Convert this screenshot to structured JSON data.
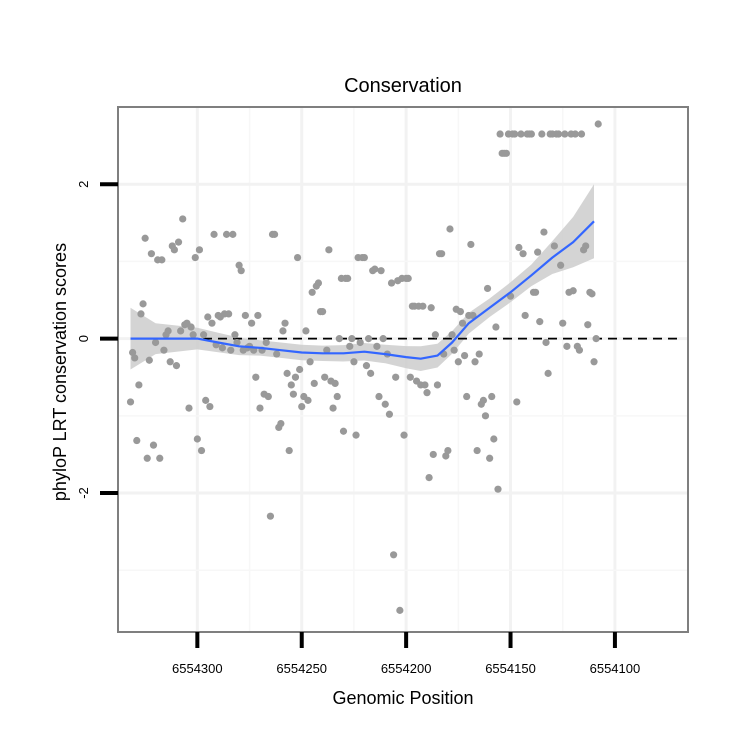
{
  "chart_data": {
    "type": "scatter",
    "title": "Conservation",
    "xlabel": "Genomic Position",
    "ylabel": "phyloP LRT conservation scores",
    "x_reversed": true,
    "xlim": [
      6554338,
      6554065
    ],
    "ylim": [
      -3.8,
      3.0
    ],
    "x_ticks": [
      6554300,
      6554250,
      6554200,
      6554150,
      6554100
    ],
    "x_tick_labels": [
      "6554300",
      "6554250",
      "6554200",
      "6554150",
      "6554100"
    ],
    "y_ticks": [
      -2,
      0,
      2
    ],
    "y_tick_labels": [
      "-2",
      "0",
      "2"
    ],
    "y_minor_gridlines": [
      -3,
      -1,
      1
    ],
    "x_minor_gridlines": [
      6554275,
      6554225,
      6554175,
      6554125
    ],
    "reference_line": {
      "y": 0,
      "style": "dashed"
    },
    "colors": {
      "points": "#999999",
      "smooth": "#3366ff",
      "ribbon": "#cccccc",
      "frame": "#7f7f7f",
      "grid": "#f2f2f2"
    },
    "points": [
      [
        6554332,
        -0.82
      ],
      [
        6554331,
        -0.18
      ],
      [
        6554330,
        -0.25
      ],
      [
        6554329,
        -1.32
      ],
      [
        6554328,
        -0.6
      ],
      [
        6554327,
        0.32
      ],
      [
        6554326,
        0.45
      ],
      [
        6554325,
        1.3
      ],
      [
        6554324,
        -1.55
      ],
      [
        6554323,
        -0.28
      ],
      [
        6554322,
        1.1
      ],
      [
        6554321,
        -1.38
      ],
      [
        6554320,
        -0.05
      ],
      [
        6554319,
        1.02
      ],
      [
        6554318,
        -1.55
      ],
      [
        6554317,
        1.02
      ],
      [
        6554316,
        -0.15
      ],
      [
        6554315,
        0.05
      ],
      [
        6554314,
        0.1
      ],
      [
        6554313,
        -0.3
      ],
      [
        6554312,
        1.2
      ],
      [
        6554311,
        1.15
      ],
      [
        6554310,
        -0.35
      ],
      [
        6554309,
        1.25
      ],
      [
        6554308,
        0.1
      ],
      [
        6554307,
        1.55
      ],
      [
        6554306,
        0.18
      ],
      [
        6554305,
        0.2
      ],
      [
        6554304,
        -0.9
      ],
      [
        6554303,
        0.15
      ],
      [
        6554302,
        0.05
      ],
      [
        6554301,
        1.05
      ],
      [
        6554300,
        -1.3
      ],
      [
        6554299,
        1.15
      ],
      [
        6554298,
        -1.45
      ],
      [
        6554297,
        0.05
      ],
      [
        6554296,
        -0.8
      ],
      [
        6554295,
        0.28
      ],
      [
        6554294,
        -0.88
      ],
      [
        6554293,
        0.2
      ],
      [
        6554292,
        1.35
      ],
      [
        6554291,
        -0.08
      ],
      [
        6554290,
        0.3
      ],
      [
        6554289,
        0.28
      ],
      [
        6554288,
        -0.12
      ],
      [
        6554287,
        0.32
      ],
      [
        6554286,
        1.35
      ],
      [
        6554285,
        0.32
      ],
      [
        6554284,
        -0.15
      ],
      [
        6554283,
        1.35
      ],
      [
        6554282,
        0.05
      ],
      [
        6554281,
        -0.05
      ],
      [
        6554280,
        0.95
      ],
      [
        6554279,
        0.88
      ],
      [
        6554278,
        -0.15
      ],
      [
        6554277,
        0.3
      ],
      [
        6554276,
        -0.12
      ],
      [
        6554275,
        -0.1
      ],
      [
        6554274,
        0.2
      ],
      [
        6554273,
        -0.15
      ],
      [
        6554272,
        -0.5
      ],
      [
        6554271,
        0.3
      ],
      [
        6554270,
        -0.9
      ],
      [
        6554269,
        -0.15
      ],
      [
        6554268,
        -0.72
      ],
      [
        6554267,
        -0.05
      ],
      [
        6554266,
        -0.75
      ],
      [
        6554265,
        -2.3
      ],
      [
        6554264,
        1.35
      ],
      [
        6554263,
        1.35
      ],
      [
        6554262,
        -0.2
      ],
      [
        6554261,
        -1.15
      ],
      [
        6554260,
        -1.1
      ],
      [
        6554259,
        0.1
      ],
      [
        6554258,
        0.2
      ],
      [
        6554257,
        -0.45
      ],
      [
        6554256,
        -1.45
      ],
      [
        6554255,
        -0.6
      ],
      [
        6554254,
        -0.72
      ],
      [
        6554253,
        -0.5
      ],
      [
        6554252,
        1.05
      ],
      [
        6554251,
        -0.4
      ],
      [
        6554250,
        -0.88
      ],
      [
        6554249,
        -0.75
      ],
      [
        6554248,
        0.1
      ],
      [
        6554247,
        -0.8
      ],
      [
        6554246,
        -0.3
      ],
      [
        6554245,
        0.6
      ],
      [
        6554244,
        -0.58
      ],
      [
        6554243,
        0.68
      ],
      [
        6554242,
        0.72
      ],
      [
        6554241,
        0.35
      ],
      [
        6554240,
        0.35
      ],
      [
        6554239,
        -0.5
      ],
      [
        6554238,
        -0.15
      ],
      [
        6554237,
        1.15
      ],
      [
        6554236,
        -0.55
      ],
      [
        6554235,
        -0.9
      ],
      [
        6554234,
        -0.58
      ],
      [
        6554233,
        -0.75
      ],
      [
        6554232,
        0.0
      ],
      [
        6554231,
        0.78
      ],
      [
        6554230,
        -1.2
      ],
      [
        6554229,
        0.78
      ],
      [
        6554228,
        0.78
      ],
      [
        6554227,
        -0.1
      ],
      [
        6554226,
        0.0
      ],
      [
        6554225,
        -0.3
      ],
      [
        6554224,
        -1.25
      ],
      [
        6554223,
        1.05
      ],
      [
        6554222,
        -0.05
      ],
      [
        6554221,
        1.05
      ],
      [
        6554220,
        1.05
      ],
      [
        6554219,
        -0.35
      ],
      [
        6554218,
        0.0
      ],
      [
        6554217,
        -0.45
      ],
      [
        6554216,
        0.88
      ],
      [
        6554215,
        0.9
      ],
      [
        6554214,
        -0.1
      ],
      [
        6554213,
        -0.75
      ],
      [
        6554212,
        0.88
      ],
      [
        6554211,
        0.0
      ],
      [
        6554210,
        -0.85
      ],
      [
        6554209,
        -0.2
      ],
      [
        6554208,
        -0.98
      ],
      [
        6554207,
        0.72
      ],
      [
        6554206,
        -2.8
      ],
      [
        6554205,
        -0.5
      ],
      [
        6554204,
        0.75
      ],
      [
        6554203,
        -3.52
      ],
      [
        6554202,
        0.78
      ],
      [
        6554201,
        -1.25
      ],
      [
        6554200,
        0.78
      ],
      [
        6554199,
        0.78
      ],
      [
        6554198,
        -0.5
      ],
      [
        6554197,
        0.42
      ],
      [
        6554196,
        0.42
      ],
      [
        6554195,
        -0.55
      ],
      [
        6554194,
        0.42
      ],
      [
        6554193,
        -0.6
      ],
      [
        6554192,
        0.42
      ],
      [
        6554191,
        -0.6
      ],
      [
        6554190,
        -0.7
      ],
      [
        6554189,
        -1.8
      ],
      [
        6554188,
        0.4
      ],
      [
        6554187,
        -1.5
      ],
      [
        6554186,
        0.05
      ],
      [
        6554185,
        -0.6
      ],
      [
        6554184,
        1.1
      ],
      [
        6554183,
        1.1
      ],
      [
        6554182,
        -0.2
      ],
      [
        6554181,
        -1.52
      ],
      [
        6554180,
        -1.45
      ],
      [
        6554179,
        1.42
      ],
      [
        6554178,
        0.05
      ],
      [
        6554177,
        -0.15
      ],
      [
        6554176,
        0.38
      ],
      [
        6554175,
        -0.3
      ],
      [
        6554174,
        0.35
      ],
      [
        6554173,
        0.2
      ],
      [
        6554172,
        -0.22
      ],
      [
        6554171,
        -0.75
      ],
      [
        6554170,
        0.3
      ],
      [
        6554169,
        1.22
      ],
      [
        6554168,
        0.3
      ],
      [
        6554167,
        -0.3
      ],
      [
        6554166,
        -1.45
      ],
      [
        6554165,
        -0.2
      ],
      [
        6554164,
        -0.85
      ],
      [
        6554163,
        -0.8
      ],
      [
        6554162,
        -1.0
      ],
      [
        6554161,
        0.65
      ],
      [
        6554160,
        -1.55
      ],
      [
        6554159,
        -0.75
      ],
      [
        6554158,
        -1.3
      ],
      [
        6554157,
        0.15
      ],
      [
        6554156,
        -1.95
      ],
      [
        6554155,
        2.65
      ],
      [
        6554154,
        2.4
      ],
      [
        6554153,
        2.4
      ],
      [
        6554152,
        2.4
      ],
      [
        6554151,
        2.65
      ],
      [
        6554150,
        0.55
      ],
      [
        6554149,
        2.65
      ],
      [
        6554148,
        2.65
      ],
      [
        6554147,
        -0.82
      ],
      [
        6554146,
        1.18
      ],
      [
        6554145,
        2.65
      ],
      [
        6554144,
        1.1
      ],
      [
        6554143,
        0.3
      ],
      [
        6554142,
        2.65
      ],
      [
        6554141,
        2.65
      ],
      [
        6554140,
        2.65
      ],
      [
        6554139,
        0.6
      ],
      [
        6554138,
        0.6
      ],
      [
        6554137,
        1.12
      ],
      [
        6554136,
        0.22
      ],
      [
        6554135,
        2.65
      ],
      [
        6554134,
        1.38
      ],
      [
        6554133,
        -0.05
      ],
      [
        6554132,
        -0.45
      ],
      [
        6554131,
        2.65
      ],
      [
        6554130,
        2.65
      ],
      [
        6554129,
        1.2
      ],
      [
        6554128,
        2.65
      ],
      [
        6554127,
        2.65
      ],
      [
        6554126,
        0.95
      ],
      [
        6554125,
        0.2
      ],
      [
        6554124,
        2.65
      ],
      [
        6554123,
        -0.1
      ],
      [
        6554122,
        0.6
      ],
      [
        6554121,
        2.65
      ],
      [
        6554120,
        0.62
      ],
      [
        6554119,
        2.65
      ],
      [
        6554118,
        -0.1
      ],
      [
        6554117,
        -0.15
      ],
      [
        6554116,
        2.65
      ],
      [
        6554115,
        1.15
      ],
      [
        6554114,
        1.2
      ],
      [
        6554113,
        0.18
      ],
      [
        6554112,
        0.6
      ],
      [
        6554111,
        0.58
      ],
      [
        6554110,
        -0.3
      ],
      [
        6554109,
        0.0
      ],
      [
        6554108,
        2.78
      ]
    ],
    "smooth": [
      [
        6554332,
        0.0
      ],
      [
        6554320,
        0.0
      ],
      [
        6554310,
        0.0
      ],
      [
        6554300,
        0.0
      ],
      [
        6554290,
        -0.05
      ],
      [
        6554280,
        -0.1
      ],
      [
        6554270,
        -0.12
      ],
      [
        6554260,
        -0.15
      ],
      [
        6554250,
        -0.18
      ],
      [
        6554240,
        -0.19
      ],
      [
        6554230,
        -0.19
      ],
      [
        6554220,
        -0.17
      ],
      [
        6554210,
        -0.2
      ],
      [
        6554200,
        -0.24
      ],
      [
        6554193,
        -0.26
      ],
      [
        6554185,
        -0.22
      ],
      [
        6554178,
        -0.05
      ],
      [
        6554170,
        0.2
      ],
      [
        6554160,
        0.4
      ],
      [
        6554150,
        0.6
      ],
      [
        6554140,
        0.82
      ],
      [
        6554130,
        1.05
      ],
      [
        6554120,
        1.25
      ],
      [
        6554110,
        1.52
      ]
    ],
    "ribbon_halfwidth": [
      [
        6554332,
        0.4
      ],
      [
        6554320,
        0.2
      ],
      [
        6554300,
        0.14
      ],
      [
        6554270,
        0.1
      ],
      [
        6554240,
        0.1
      ],
      [
        6554210,
        0.12
      ],
      [
        6554193,
        0.16
      ],
      [
        6554180,
        0.15
      ],
      [
        6554160,
        0.12
      ],
      [
        6554140,
        0.14
      ],
      [
        6554125,
        0.25
      ],
      [
        6554110,
        0.48
      ]
    ]
  }
}
